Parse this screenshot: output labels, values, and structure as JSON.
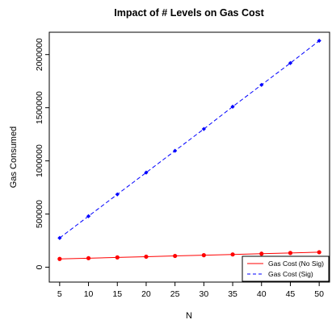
{
  "chart_data": {
    "type": "line",
    "title": "Impact of # Levels on Gas Cost",
    "xlabel": "N",
    "ylabel": "Gas Consumed",
    "x": [
      5,
      10,
      15,
      20,
      25,
      30,
      35,
      40,
      45,
      50
    ],
    "xticks": [
      5,
      10,
      15,
      20,
      25,
      30,
      35,
      40,
      45,
      50
    ],
    "yticks": [
      0,
      500000,
      1000000,
      1500000,
      2000000
    ],
    "ytick_labels": [
      "0",
      "500000",
      "1000000",
      "1500000",
      "2000000"
    ],
    "xlim": [
      3.2,
      51.8
    ],
    "ylim": [
      -140000,
      2210000
    ],
    "grid": false,
    "legend_position": "bottom-right",
    "series": [
      {
        "name": "Gas Cost (No Sig)",
        "color": "#ff0000",
        "line_style": "solid",
        "marker": "filled-circle",
        "values": [
          78000,
          85000,
          92000,
          99000,
          106000,
          113000,
          120000,
          127000,
          134000,
          141000
        ]
      },
      {
        "name": "Gas Cost (Sig)",
        "color": "#0000ff",
        "line_style": "dashed",
        "marker": "filled-diamond",
        "values": [
          275000,
          480000,
          685000,
          890000,
          1095000,
          1300000,
          1510000,
          1715000,
          1920000,
          2130000
        ]
      }
    ]
  }
}
